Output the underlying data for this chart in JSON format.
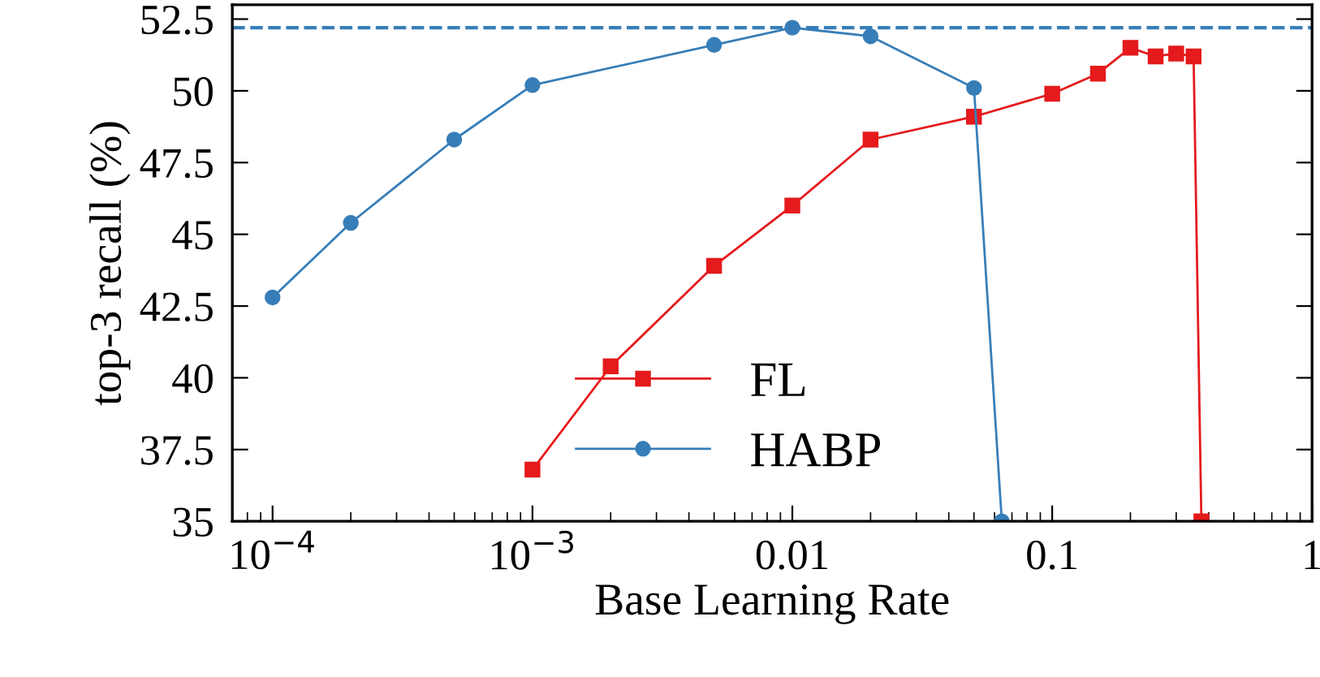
{
  "chart_data": {
    "type": "line",
    "xlabel": "Base Learning Rate",
    "ylabel": "top-3 recall (%)",
    "log": "x",
    "xlim": [
      7e-05,
      1
    ],
    "xticks": [
      {
        "value": 0.0001,
        "label": "10$^{−4}$"
      },
      {
        "value": 0.001,
        "label": "10$^{−3}$"
      },
      {
        "value": 0.01,
        "label": "0.01"
      },
      {
        "value": 0.1,
        "label": "0.1"
      },
      1
    ],
    "ylim": [
      35,
      53
    ],
    "yticks": [
      35,
      37.5,
      40,
      42.5,
      45,
      47.5,
      50,
      52.5
    ],
    "grid": false,
    "legend": "bottom",
    "series": [
      {
        "name": "FL",
        "color": "#e41a1c",
        "marker": "square",
        "x": [
          0.001,
          0.002,
          0.005,
          0.01,
          0.02,
          0.05,
          0.1,
          0.15,
          0.2,
          0.25,
          0.3,
          0.35,
          0.375
        ],
        "values": [
          36.8,
          40.4,
          43.9,
          46.0,
          48.3,
          49.1,
          49.9,
          50.6,
          51.5,
          51.2,
          51.3,
          51.2,
          35
        ]
      },
      {
        "name": "HABP",
        "color": "#377eb8",
        "marker": "circle",
        "x": [
          0.0001,
          0.0002,
          0.0005,
          0.001,
          0.005,
          0.01,
          0.02,
          0.05,
          0.064
        ],
        "values": [
          42.8,
          45.4,
          48.3,
          50.2,
          51.6,
          52.2,
          51.9,
          50.1,
          35
        ]
      }
    ],
    "ref_lines": [
      {
        "axis": "y",
        "value": 52.2,
        "color": "#377eb8",
        "line_style": "dashed"
      }
    ]
  }
}
